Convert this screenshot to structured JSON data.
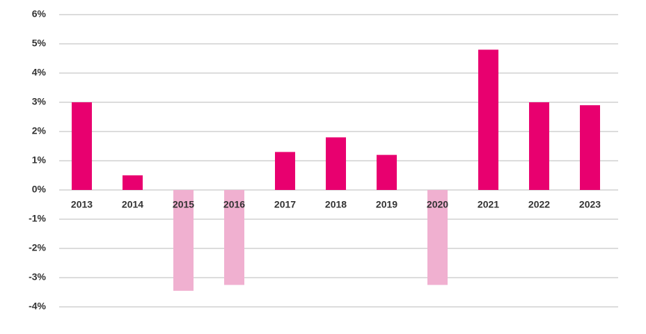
{
  "chart_data": {
    "type": "bar",
    "categories": [
      "2013",
      "2014",
      "2015",
      "2016",
      "2017",
      "2018",
      "2019",
      "2020",
      "2021",
      "2022",
      "2023"
    ],
    "values": [
      3.0,
      0.5,
      -3.45,
      -3.25,
      1.3,
      1.8,
      1.2,
      -3.25,
      4.8,
      3.0,
      2.9
    ],
    "color": "#e8006f",
    "negative_color": "#f0b0d0",
    "ylim": [
      -4,
      6
    ],
    "yticks": [
      {
        "value": 6,
        "label": "6%"
      },
      {
        "value": 5,
        "label": "5%"
      },
      {
        "value": 4,
        "label": "4%"
      },
      {
        "value": 3,
        "label": "3%"
      },
      {
        "value": 2,
        "label": "2%"
      },
      {
        "value": 1,
        "label": "1%"
      },
      {
        "value": 0,
        "label": "0%"
      },
      {
        "value": -1,
        "label": "-1%"
      },
      {
        "value": -2,
        "label": "-2%"
      },
      {
        "value": -3,
        "label": "-3%"
      },
      {
        "value": -4,
        "label": "-4%"
      }
    ],
    "grid": true
  }
}
